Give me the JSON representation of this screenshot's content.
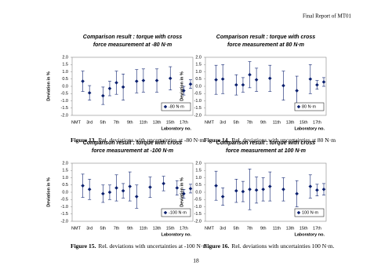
{
  "header": "Final Report of MT01",
  "page_number": "18",
  "chart_data": [
    {
      "type": "scatter",
      "title": [
        "Comparison result : torque with cross",
        "force measurement at -80 N·m"
      ],
      "y_label": "Deviation in %",
      "x_label": "Laboratory no.",
      "categories": [
        "NMT",
        null,
        "3rd",
        null,
        "5th",
        null,
        "7th",
        null,
        "9th",
        null,
        "11th",
        null,
        "13th",
        null,
        "15th",
        null,
        "17th",
        null
      ],
      "ylim": [
        -2,
        2
      ],
      "yticks": [
        {
          "value": -2,
          "label": "-2.0"
        },
        {
          "value": -1.5,
          "label": "-1.5"
        },
        {
          "value": -1,
          "label": "-1.0"
        },
        {
          "value": -0.5,
          "label": "-0.5"
        },
        {
          "value": 0,
          "label": "0.0"
        },
        {
          "value": 0.5,
          "label": "0.5"
        },
        {
          "value": 1,
          "label": "1.0"
        },
        {
          "value": 1.5,
          "label": "1.5"
        },
        {
          "value": 2,
          "label": "2.0"
        }
      ],
      "series": [
        {
          "name": "-80 N·m",
          "color": "#0a1f6e",
          "values": [
            null,
            0.35,
            -0.45,
            null,
            -0.65,
            -0.15,
            0.25,
            -0.05,
            null,
            0.35,
            0.4,
            null,
            0.4,
            null,
            0.55,
            null,
            -0.3,
            0.15
          ],
          "errors": [
            null,
            0.7,
            0.5,
            null,
            0.6,
            0.5,
            0.8,
            0.9,
            null,
            0.8,
            0.8,
            null,
            0.8,
            null,
            0.8,
            null,
            0.3,
            0.3
          ]
        }
      ],
      "figure_label": "Figure 13.",
      "caption": "Rel. deviations with uncertainties at -80 N·m."
    },
    {
      "type": "scatter",
      "title": [
        "Comparison result : torque with cross",
        "force measurement at 80 N·m"
      ],
      "y_label": "Deviation in %",
      "x_label": "Laboratory no.",
      "categories": [
        "NMT",
        null,
        "3rd",
        null,
        "5th",
        null,
        "7th",
        null,
        "9th",
        null,
        "11th",
        null,
        "13th",
        null,
        "15th",
        null,
        "17th",
        null
      ],
      "ylim": [
        -2,
        2
      ],
      "yticks": [
        {
          "value": -2,
          "label": "-2.0"
        },
        {
          "value": -1.5,
          "label": "-1.5"
        },
        {
          "value": -1,
          "label": "-1.0"
        },
        {
          "value": -0.5,
          "label": "-0.5"
        },
        {
          "value": 0,
          "label": "0.0"
        },
        {
          "value": 0.5,
          "label": "0.5"
        },
        {
          "value": 1,
          "label": "1.0"
        },
        {
          "value": 1.5,
          "label": "1.5"
        },
        {
          "value": 2,
          "label": "2.0"
        }
      ],
      "series": [
        {
          "name": "80 N·m",
          "color": "#0a1f6e",
          "values": [
            null,
            0.45,
            0.5,
            null,
            0.1,
            0.1,
            0.8,
            0.45,
            null,
            0.55,
            null,
            0.05,
            null,
            -0.3,
            null,
            0.5,
            0.1,
            0.3
          ],
          "errors": [
            null,
            1.0,
            1.0,
            null,
            0.7,
            0.5,
            0.9,
            0.8,
            null,
            0.9,
            null,
            1.0,
            null,
            1.0,
            null,
            1.0,
            0.3,
            0.3
          ]
        }
      ],
      "figure_label": "Figure 14.",
      "caption": "Rel. deviations with uncertainties at 80 N·m"
    },
    {
      "type": "scatter",
      "title": [
        "Comparison result : torque with cross",
        "force measurement at -100 N·m"
      ],
      "y_label": "Deviation in %",
      "x_label": "Laboratory no.",
      "categories": [
        "NMT",
        null,
        "3rd",
        null,
        "5th",
        null,
        "7th",
        null,
        "9th",
        null,
        "11th",
        null,
        "13th",
        null,
        "15th",
        null,
        "17th",
        null
      ],
      "ylim": [
        -2,
        2
      ],
      "yticks": [
        {
          "value": -2,
          "label": "-2.0"
        },
        {
          "value": -1.5,
          "label": "-1.5"
        },
        {
          "value": -1,
          "label": "-1.0"
        },
        {
          "value": -0.5,
          "label": "-0.5"
        },
        {
          "value": 0,
          "label": "0.0"
        },
        {
          "value": 0.5,
          "label": "0.5"
        },
        {
          "value": 1,
          "label": "1.0"
        },
        {
          "value": 1.5,
          "label": "1.5"
        },
        {
          "value": 2,
          "label": "2.0"
        }
      ],
      "series": [
        {
          "name": "-100 N·m",
          "color": "#0a1f6e",
          "values": [
            null,
            0.45,
            0.2,
            null,
            -0.1,
            0.0,
            0.3,
            0.1,
            0.4,
            -0.3,
            null,
            0.35,
            null,
            0.6,
            null,
            0.3,
            -0.1,
            0.25
          ],
          "errors": [
            null,
            0.8,
            0.7,
            null,
            0.6,
            0.5,
            0.9,
            0.5,
            1.0,
            0.8,
            null,
            0.7,
            null,
            0.5,
            null,
            0.5,
            0.3,
            0.3
          ]
        }
      ],
      "figure_label": "Figure 15.",
      "caption": "Rel. deviations with uncertainties at -100 N·m."
    },
    {
      "type": "scatter",
      "title": [
        "Comparison result : torque with cross",
        "force measurement at 100 N·m"
      ],
      "y_label": "Deviation in %",
      "x_label": "Laboratory no.",
      "categories": [
        "NMT",
        null,
        "3rd",
        null,
        "5th",
        null,
        "7th",
        null,
        "9th",
        null,
        "11th",
        null,
        "13th",
        null,
        "15th",
        null,
        "17th",
        null
      ],
      "ylim": [
        -2,
        2
      ],
      "yticks": [
        {
          "value": -2,
          "label": "-2.0"
        },
        {
          "value": -1.5,
          "label": "-1.5"
        },
        {
          "value": -1,
          "label": "-1.0"
        },
        {
          "value": -0.5,
          "label": "-0.5"
        },
        {
          "value": 0,
          "label": "0.0"
        },
        {
          "value": 0.5,
          "label": "0.5"
        },
        {
          "value": 1,
          "label": "1.0"
        },
        {
          "value": 1.5,
          "label": "1.5"
        },
        {
          "value": 2,
          "label": "2.0"
        }
      ],
      "series": [
        {
          "name": "100 N·m",
          "color": "#0a1f6e",
          "values": [
            null,
            0.45,
            -0.3,
            null,
            0.1,
            0.05,
            0.2,
            0.15,
            0.2,
            0.4,
            null,
            0.2,
            null,
            -0.1,
            null,
            0.4,
            0.15,
            0.2
          ],
          "errors": [
            null,
            1.0,
            0.6,
            null,
            0.8,
            0.7,
            1.4,
            0.9,
            0.8,
            1.0,
            null,
            0.8,
            null,
            0.9,
            null,
            0.8,
            0.4,
            0.4
          ]
        }
      ],
      "figure_label": "Figure 16.",
      "caption": "Rel. deviations with uncertainties 100 N·m."
    }
  ]
}
